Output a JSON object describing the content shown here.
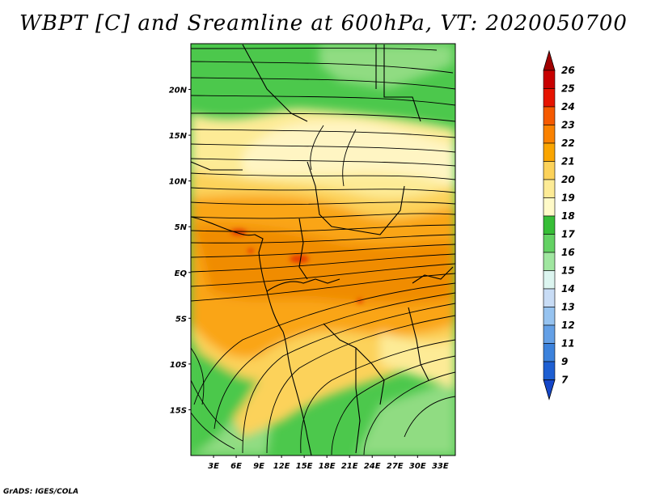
{
  "title": "WBPT [C] and Sreamline at 600hPa, VT: 2020050700",
  "credit": "GrADS: IGES/COLA",
  "map": {
    "lat_labels": [
      "20N",
      "15N",
      "10N",
      "5N",
      "EQ",
      "5S",
      "10S",
      "15S"
    ],
    "lat_values": [
      20,
      15,
      10,
      5,
      0,
      -5,
      -10,
      -15
    ],
    "lon_labels": [
      "3E",
      "6E",
      "9E",
      "12E",
      "15E",
      "18E",
      "21E",
      "24E",
      "27E",
      "30E",
      "33E"
    ],
    "lon_values": [
      3,
      6,
      9,
      12,
      15,
      18,
      21,
      24,
      27,
      30,
      33
    ],
    "lat_range": [
      -20,
      25
    ],
    "lon_range": [
      0,
      35
    ]
  },
  "colorbar": {
    "levels": [
      "26",
      "25",
      "24",
      "23",
      "22",
      "21",
      "20",
      "19",
      "18",
      "17",
      "16",
      "15",
      "14",
      "13",
      "12",
      "11",
      "9",
      "7"
    ],
    "colors": [
      "#a00000",
      "#c80000",
      "#e61400",
      "#f55a00",
      "#fa8200",
      "#faa500",
      "#fcd25a",
      "#fdeb96",
      "#fffac8",
      "#37be37",
      "#64d264",
      "#a0e6a0",
      "#dcf5f0",
      "#c8dcf5",
      "#96c3f0",
      "#64a0e6",
      "#3c82dc",
      "#1e5fd2",
      "#1446c8"
    ]
  },
  "field_colors": {
    "green": "#4cc84c",
    "light_green": "#90dc82",
    "cream": "#fdeb96",
    "pale": "#fff5c3",
    "light_orange": "#fcd25a",
    "orange": "#faa514",
    "dark_orange": "#f08c00",
    "red": "#e63c00"
  }
}
